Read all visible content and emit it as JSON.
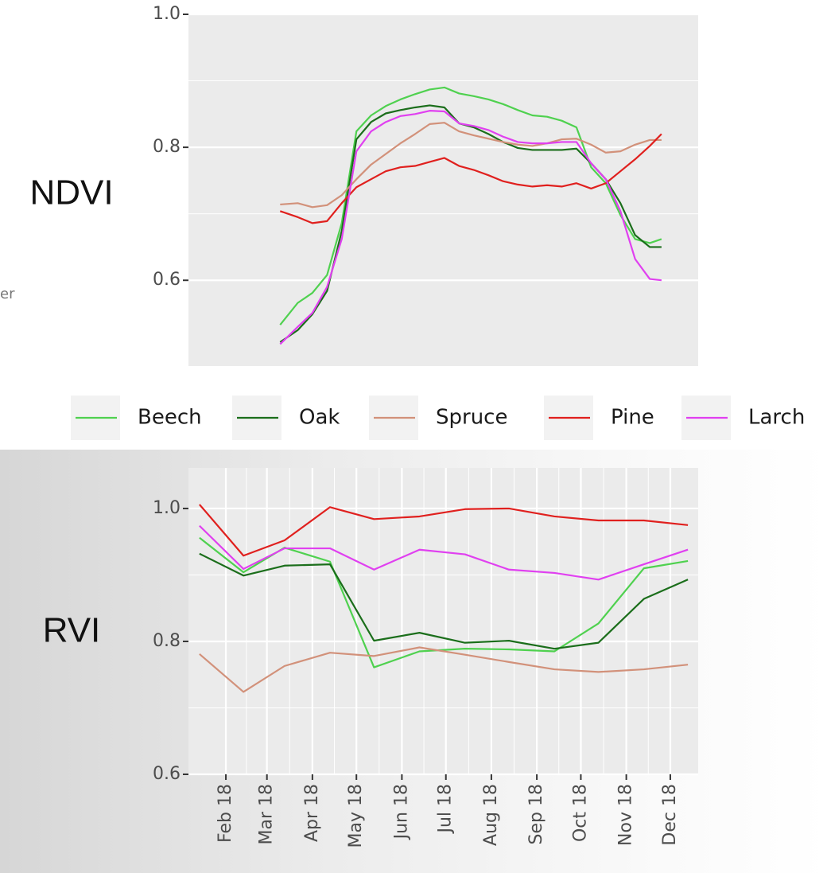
{
  "side_text": "er",
  "chart_data": [
    {
      "type": "line",
      "title": "NDVI",
      "x": [
        68,
        80,
        90,
        100,
        110,
        120,
        130,
        140,
        150,
        160,
        170,
        180,
        190,
        200,
        210,
        220,
        230,
        240,
        250,
        260,
        270,
        280,
        290,
        300,
        310,
        320,
        328
      ],
      "xlim": [
        5.5,
        353
      ],
      "ylim": [
        0.471,
        1.0
      ],
      "yticks": [
        0.6,
        0.8,
        {
          "value": 1,
          "label": "1.0"
        }
      ],
      "grid": true,
      "series": [
        {
          "name": "Beech",
          "color": "#4fd14f",
          "values": [
            0.533,
            0.566,
            0.581,
            0.608,
            0.686,
            0.824,
            0.848,
            0.862,
            0.872,
            0.88,
            0.887,
            0.89,
            0.881,
            0.877,
            0.872,
            0.865,
            0.856,
            0.848,
            0.846,
            0.84,
            0.83,
            0.77,
            0.746,
            0.698,
            0.662,
            0.656,
            0.662
          ]
        },
        {
          "name": "Oak",
          "color": "#1b6e1b",
          "values": [
            0.507,
            0.525,
            0.549,
            0.584,
            0.674,
            0.812,
            0.838,
            0.851,
            0.856,
            0.86,
            0.863,
            0.86,
            0.836,
            0.83,
            0.82,
            0.808,
            0.799,
            0.796,
            0.796,
            0.796,
            0.798,
            0.776,
            0.752,
            0.716,
            0.668,
            0.65,
            0.65
          ]
        },
        {
          "name": "Spruce",
          "color": "#d2917a",
          "values": [
            0.714,
            0.716,
            0.71,
            0.713,
            0.728,
            0.752,
            0.774,
            0.79,
            0.806,
            0.82,
            0.835,
            0.837,
            0.824,
            0.818,
            0.813,
            0.808,
            0.804,
            0.802,
            0.806,
            0.812,
            0.813,
            0.804,
            0.792,
            0.794,
            0.804,
            0.811,
            0.811
          ]
        },
        {
          "name": "Pine",
          "color": "#e0201e",
          "values": [
            0.704,
            0.695,
            0.686,
            0.689,
            0.716,
            0.74,
            0.752,
            0.764,
            0.77,
            0.772,
            0.778,
            0.784,
            0.772,
            0.766,
            0.758,
            0.749,
            0.744,
            0.741,
            0.743,
            0.741,
            0.746,
            0.738,
            0.746,
            0.764,
            0.782,
            0.802,
            0.82
          ]
        },
        {
          "name": "Larch",
          "color": "#e040f0",
          "values": [
            0.504,
            0.53,
            0.551,
            0.59,
            0.662,
            0.794,
            0.824,
            0.838,
            0.847,
            0.85,
            0.855,
            0.854,
            0.836,
            0.832,
            0.826,
            0.816,
            0.808,
            0.806,
            0.806,
            0.808,
            0.808,
            0.776,
            0.752,
            0.704,
            0.632,
            0.602,
            0.6
          ]
        }
      ]
    },
    {
      "type": "line",
      "title": "RVI",
      "x": [
        13,
        43,
        71,
        102,
        132,
        163,
        194,
        224,
        255,
        285,
        316,
        346
      ],
      "xlim": [
        5.5,
        353
      ],
      "xticks": [
        {
          "value": 31,
          "label": "Feb 18"
        },
        {
          "value": 59,
          "label": "Mar 18"
        },
        {
          "value": 90,
          "label": "Apr 18"
        },
        {
          "value": 120,
          "label": "May 18"
        },
        {
          "value": 151,
          "label": "Jun 18"
        },
        {
          "value": 181,
          "label": "Jul 18"
        },
        {
          "value": 212,
          "label": "Aug 18"
        },
        {
          "value": 243,
          "label": "Sep 18"
        },
        {
          "value": 273,
          "label": "Oct 18"
        },
        {
          "value": 304,
          "label": "Nov 18"
        },
        {
          "value": 334,
          "label": "Dec 18"
        }
      ],
      "ylim": [
        0.6,
        1.061
      ],
      "yticks": [
        0.6,
        0.8,
        {
          "value": 1,
          "label": "1.0"
        }
      ],
      "grid": true,
      "series": [
        {
          "name": "Beech",
          "color": "#4fd14f",
          "values": [
            0.956,
            0.904,
            0.941,
            0.92,
            0.761,
            0.785,
            0.789,
            0.788,
            0.785,
            0.827,
            0.91,
            0.921
          ]
        },
        {
          "name": "Oak",
          "color": "#1b6e1b",
          "values": [
            0.932,
            0.899,
            0.914,
            0.916,
            0.801,
            0.813,
            0.798,
            0.801,
            0.789,
            0.798,
            0.864,
            0.893
          ]
        },
        {
          "name": "Spruce",
          "color": "#d2917a",
          "values": [
            0.781,
            0.724,
            0.763,
            0.783,
            0.778,
            0.791,
            0.78,
            0.769,
            0.758,
            0.754,
            0.758,
            0.765
          ]
        },
        {
          "name": "Pine",
          "color": "#e0201e",
          "values": [
            1.006,
            0.929,
            0.952,
            1.002,
            0.984,
            0.988,
            0.999,
            1.0,
            0.988,
            0.982,
            0.982,
            0.975
          ]
        },
        {
          "name": "Larch",
          "color": "#e040f0",
          "values": [
            0.974,
            0.909,
            0.94,
            0.94,
            0.908,
            0.938,
            0.931,
            0.908,
            0.903,
            0.893,
            0.916,
            0.938
          ]
        }
      ]
    }
  ]
}
